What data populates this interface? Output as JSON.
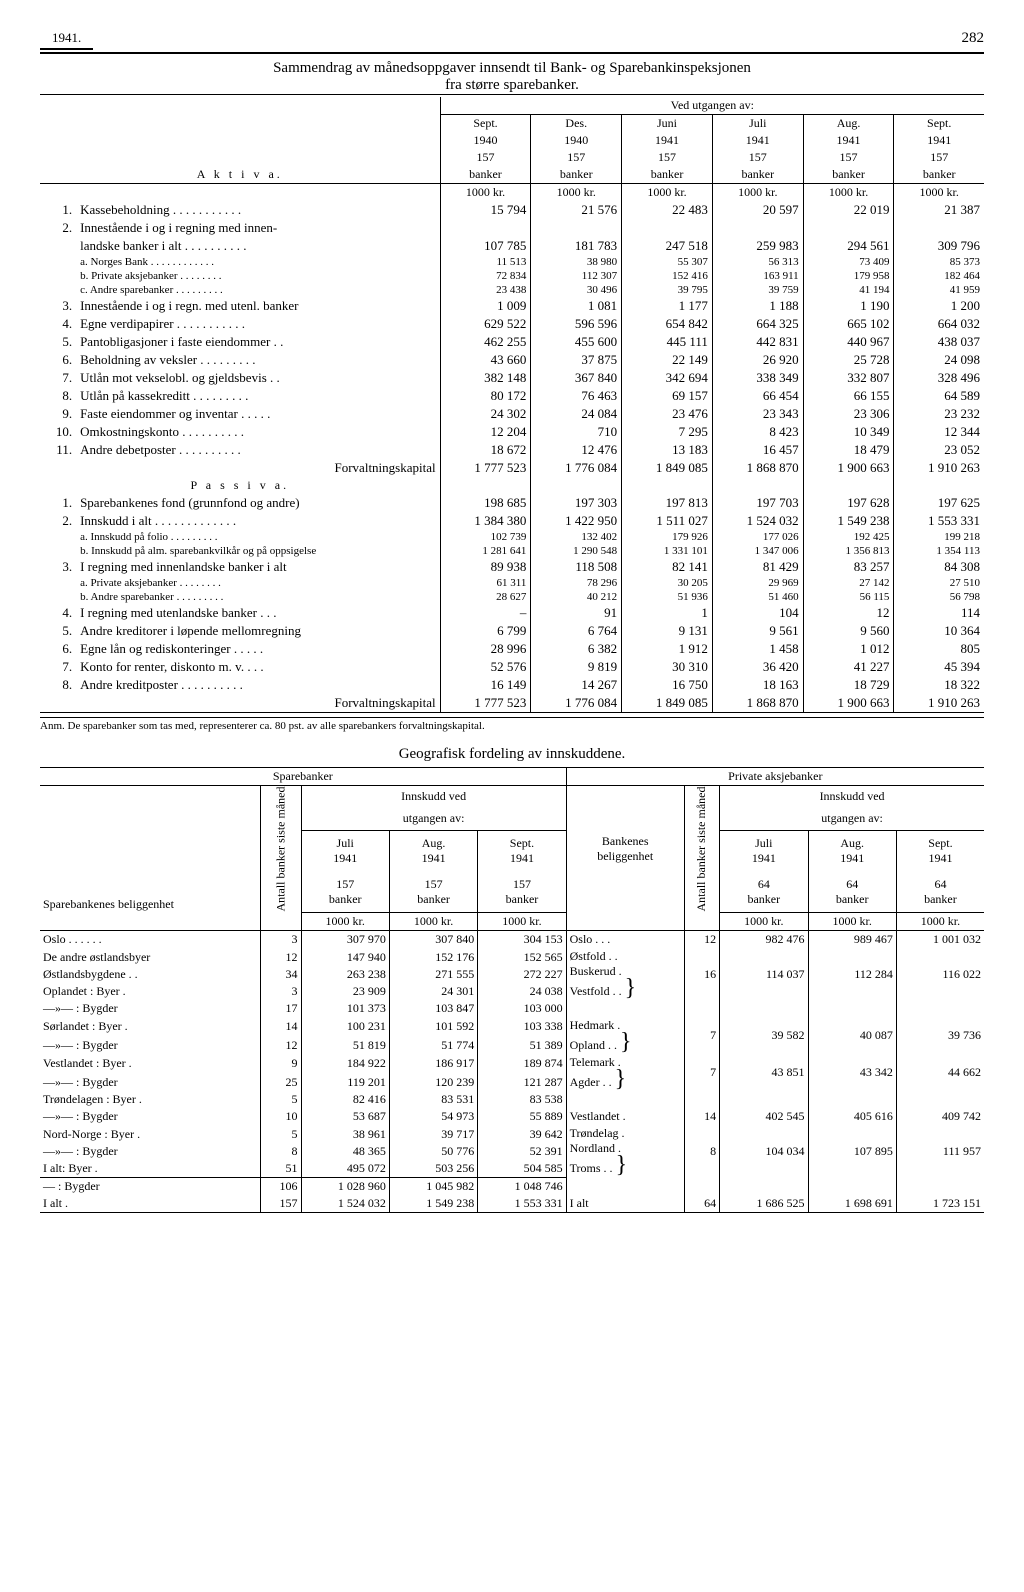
{
  "header": {
    "year": "1941.",
    "page": "282"
  },
  "title": "Sammendrag av månedsoppgaver innsendt til Bank- og Sparebankinspeksjonen",
  "subtitle": "fra større sparebanker.",
  "periods_header": "Ved utgangen av:",
  "periods": [
    {
      "m": "Sept.",
      "y": "1940",
      "b": "157",
      "bw": "banker"
    },
    {
      "m": "Des.",
      "y": "1940",
      "b": "157",
      "bw": "banker"
    },
    {
      "m": "Juni",
      "y": "1941",
      "b": "157",
      "bw": "banker"
    },
    {
      "m": "Juli",
      "y": "1941",
      "b": "157",
      "bw": "banker"
    },
    {
      "m": "Aug.",
      "y": "1941",
      "b": "157",
      "bw": "banker"
    },
    {
      "m": "Sept.",
      "y": "1941",
      "b": "157",
      "bw": "banker"
    }
  ],
  "unit_row": "1000 kr.",
  "aktiva_label": "A k t i v a.",
  "passiva_label": "P a s s i v a.",
  "forvalt_label": "Forvaltningskapital",
  "aktiva": [
    {
      "n": "1.",
      "l": "Kassebeholdning  . . . . . . . . . . .",
      "v": [
        "15 794",
        "21 576",
        "22 483",
        "20 597",
        "22 019",
        "21 387"
      ]
    },
    {
      "n": "2.",
      "l": "Innestående i og i regning med innen-",
      "v": [
        "",
        "",
        "",
        "",
        "",
        ""
      ]
    },
    {
      "n": "",
      "l": "landske banker i alt . . . . . . . . . .",
      "v": [
        "107 785",
        "181 783",
        "247 518",
        "259 983",
        "294 561",
        "309 796"
      ]
    },
    {
      "n": "",
      "l": "a. Norges Bank  . . . . . . . . . . . .",
      "small": true,
      "v": [
        "11 513",
        "38 980",
        "55 307",
        "56 313",
        "73 409",
        "85 373"
      ]
    },
    {
      "n": "",
      "l": "b. Private aksjebanker   . . . . . . . .",
      "small": true,
      "v": [
        "72 834",
        "112 307",
        "152 416",
        "163 911",
        "179 958",
        "182 464"
      ]
    },
    {
      "n": "",
      "l": "c. Andre sparebanker  . . . . . . . . .",
      "small": true,
      "v": [
        "23 438",
        "30 496",
        "39 795",
        "39 759",
        "41 194",
        "41 959"
      ]
    },
    {
      "n": "3.",
      "l": "Innestående i og i regn. med utenl. banker",
      "v": [
        "1 009",
        "1 081",
        "1 177",
        "1 188",
        "1 190",
        "1 200"
      ]
    },
    {
      "n": "4.",
      "l": "Egne verdipapirer . . . . . . . . . . .",
      "v": [
        "629 522",
        "596 596",
        "654 842",
        "664 325",
        "665 102",
        "664 032"
      ]
    },
    {
      "n": "5.",
      "l": "Pantobligasjoner i faste eiendommer  . .",
      "v": [
        "462 255",
        "455 600",
        "445 111",
        "442 831",
        "440 967",
        "438 037"
      ]
    },
    {
      "n": "6.",
      "l": "Beholdning av veksler . . . . . . . . .",
      "v": [
        "43 660",
        "37 875",
        "22 149",
        "26 920",
        "25 728",
        "24 098"
      ]
    },
    {
      "n": "7.",
      "l": "Utlån mot vekselobl. og gjeldsbevis  . .",
      "v": [
        "382 148",
        "367 840",
        "342 694",
        "338 349",
        "332 807",
        "328 496"
      ]
    },
    {
      "n": "8.",
      "l": "Utlån på kassekreditt . . . . . . . . .",
      "v": [
        "80 172",
        "76 463",
        "69 157",
        "66 454",
        "66 155",
        "64 589"
      ]
    },
    {
      "n": "9.",
      "l": "Faste eiendommer og inventar . . . . .",
      "v": [
        "24 302",
        "24 084",
        "23 476",
        "23 343",
        "23 306",
        "23 232"
      ]
    },
    {
      "n": "10.",
      "l": "Omkostningskonto   . . . . . . . . . .",
      "v": [
        "12 204",
        "710",
        "7 295",
        "8 423",
        "10 349",
        "12 344"
      ]
    },
    {
      "n": "11.",
      "l": "Andre debetposter   . . . . . . . . . .",
      "v": [
        "18 672",
        "12 476",
        "13 183",
        "16 457",
        "18 479",
        "23 052"
      ]
    }
  ],
  "aktiva_total": [
    "1 777 523",
    "1 776 084",
    "1 849 085",
    "1 868 870",
    "1 900 663",
    "1 910 263"
  ],
  "passiva": [
    {
      "n": "1.",
      "l": "Sparebankenes fond (grunnfond og andre)",
      "v": [
        "198 685",
        "197 303",
        "197 813",
        "197 703",
        "197 628",
        "197 625"
      ]
    },
    {
      "n": "2.",
      "l": "Innskudd i alt . . . . . . . . . . . . .",
      "v": [
        "1 384 380",
        "1 422 950",
        "1 511 027",
        "1 524 032",
        "1 549 238",
        "1 553 331"
      ]
    },
    {
      "n": "",
      "l": "a. Innskudd på folio  . . . . . . . . .",
      "small": true,
      "v": [
        "102 739",
        "132 402",
        "179 926",
        "177 026",
        "192 425",
        "199 218"
      ]
    },
    {
      "n": "",
      "l": "b. Innskudd på alm. sparebankvilkår og på oppsigelse",
      "small": true,
      "v": [
        "1 281 641",
        "1 290 548",
        "1 331 101",
        "1 347 006",
        "1 356 813",
        "1 354 113"
      ]
    },
    {
      "n": "3.",
      "l": "I regning med innenlandske banker i alt",
      "v": [
        "89 938",
        "118 508",
        "82 141",
        "81 429",
        "83 257",
        "84 308"
      ]
    },
    {
      "n": "",
      "l": "a. Private aksjebanker   . . . . . . . .",
      "small": true,
      "v": [
        "61 311",
        "78 296",
        "30 205",
        "29 969",
        "27 142",
        "27 510"
      ]
    },
    {
      "n": "",
      "l": "b. Andre sparebanker  . . . . . . . . .",
      "small": true,
      "v": [
        "28 627",
        "40 212",
        "51 936",
        "51 460",
        "56 115",
        "56 798"
      ]
    },
    {
      "n": "4.",
      "l": "I regning med utenlandske banker . . .",
      "v": [
        "–",
        "91",
        "1",
        "104",
        "12",
        "114"
      ]
    },
    {
      "n": "5.",
      "l": "Andre kreditorer i løpende mellomregning",
      "v": [
        "6 799",
        "6 764",
        "9 131",
        "9 561",
        "9 560",
        "10 364"
      ]
    },
    {
      "n": "6.",
      "l": "Egne lån og rediskonteringer . . . . .",
      "v": [
        "28 996",
        "6 382",
        "1 912",
        "1 458",
        "1 012",
        "805"
      ]
    },
    {
      "n": "7.",
      "l": "Konto for renter, diskonto m. v. . . .",
      "v": [
        "52 576",
        "9 819",
        "30 310",
        "36 420",
        "41 227",
        "45 394"
      ]
    },
    {
      "n": "8.",
      "l": "Andre kreditposter  . . . . . . . . . .",
      "v": [
        "16 149",
        "14 267",
        "16 750",
        "18 163",
        "18 729",
        "18 322"
      ]
    }
  ],
  "passiva_total": [
    "1 777 523",
    "1 776 084",
    "1 849 085",
    "1 868 870",
    "1 900 663",
    "1 910 263"
  ],
  "anm": "Anm. De sparebanker som tas med, representerer ca. 80 pst. av alle sparebankers forvaltningskapital.",
  "geo_title": "Geografisk fordeling av innskuddene.",
  "geo": {
    "left_head": "Sparebanker",
    "right_head": "Private aksjebanker",
    "inns_head": "Innskudd ved",
    "utg_head": "utgangen av:",
    "antall_head1": "Antall banker",
    "antall_head2": "siste måned",
    "col_label": "Sparebankenes beliggenhet",
    "right_col_label": "Bankenes",
    "right_col_label2": "beliggenhet",
    "periods": [
      {
        "m": "Juli",
        "y": "1941",
        "b": "157",
        "bw": "banker"
      },
      {
        "m": "Aug.",
        "y": "1941",
        "b": "157",
        "bw": "banker"
      },
      {
        "m": "Sept.",
        "y": "1941",
        "b": "157",
        "bw": "banker"
      }
    ],
    "right_periods": [
      {
        "m": "Juli",
        "y": "1941",
        "b": "64",
        "bw": "banker"
      },
      {
        "m": "Aug.",
        "y": "1941",
        "b": "64",
        "bw": "banker"
      },
      {
        "m": "Sept.",
        "y": "1941",
        "b": "64",
        "bw": "banker"
      }
    ],
    "left_rows": [
      {
        "l": "Oslo . . . . . .",
        "a": "3",
        "v": [
          "307 970",
          "307 840",
          "304 153"
        ]
      },
      {
        "l": "De andre østlandsbyer",
        "a": "12",
        "v": [
          "147 940",
          "152 176",
          "152 565"
        ]
      },
      {
        "l": "Østlandsbygdene  . .",
        "a": "34",
        "v": [
          "263 238",
          "271 555",
          "272 227"
        ]
      },
      {
        "l": "Oplandet    :  Byer  .",
        "a": "3",
        "v": [
          "23 909",
          "24 301",
          "24 038"
        ]
      },
      {
        "l": "—»—      :  Bygder",
        "a": "17",
        "v": [
          "101 373",
          "103 847",
          "103 000"
        ]
      },
      {
        "l": "Sørlandet    :  Byer  .",
        "a": "14",
        "v": [
          "100 231",
          "101 592",
          "103 338"
        ]
      },
      {
        "l": "—»—      :  Bygder",
        "a": "12",
        "v": [
          "51 819",
          "51 774",
          "51 389"
        ]
      },
      {
        "l": "Vestlandet   :  Byer  .",
        "a": "9",
        "v": [
          "184 922",
          "186 917",
          "189 874"
        ]
      },
      {
        "l": "—»—      :  Bygder",
        "a": "25",
        "v": [
          "119 201",
          "120 239",
          "121 287"
        ]
      },
      {
        "l": "Trøndelagen :  Byer  .",
        "a": "5",
        "v": [
          "82 416",
          "83 531",
          "83 538"
        ]
      },
      {
        "l": "—»—      :  Bygder",
        "a": "10",
        "v": [
          "53 687",
          "54 973",
          "55 889"
        ]
      },
      {
        "l": "Nord-Norge :  Byer  .",
        "a": "5",
        "v": [
          "38 961",
          "39 717",
          "39 642"
        ]
      },
      {
        "l": "—»—      :  Bygder",
        "a": "8",
        "v": [
          "48 365",
          "50 776",
          "52 391"
        ]
      },
      {
        "l": "I alt:  Byer  .",
        "a": "51",
        "v": [
          "495 072",
          "503 256",
          "504 585"
        ]
      },
      {
        "l": "—   :  Bygder",
        "a": "106",
        "v": [
          "1 028 960",
          "1 045 982",
          "1 048 746"
        ]
      },
      {
        "l": "I alt  .",
        "a": "157",
        "v": [
          "1 524 032",
          "1 549 238",
          "1 553 331"
        ]
      }
    ],
    "right_rows": [
      {
        "l": "Oslo  .  .  .",
        "a": "12",
        "v": [
          "982 476",
          "989 467",
          "1 001 032"
        ]
      },
      {
        "l1": "Østfold . .",
        "l2": "Buskerud .",
        "l3": "Vestfold . .",
        "a": "16",
        "v": [
          "114 037",
          "112 284",
          "116 022"
        ]
      },
      {
        "l1": "Hedmark .",
        "l2": "Opland .  .",
        "a": "7",
        "v": [
          "39 582",
          "40 087",
          "39 736"
        ]
      },
      {
        "l1": "Telemark .",
        "l2": "Agder  .  .",
        "a": "7",
        "v": [
          "43 851",
          "43 342",
          "44 662"
        ]
      },
      {
        "l": "Vestlandet .",
        "a": "14",
        "v": [
          "402 545",
          "405 616",
          "409 742"
        ]
      },
      {
        "l1": "Trøndelag .",
        "l2": "Nordland .",
        "l3": "Troms  .  .",
        "a": "8",
        "v": [
          "104 034",
          "107 895",
          "111 957"
        ]
      },
      {
        "l": "I alt",
        "a": "64",
        "v": [
          "1 686 525",
          "1 698 691",
          "1 723 151"
        ]
      }
    ]
  }
}
